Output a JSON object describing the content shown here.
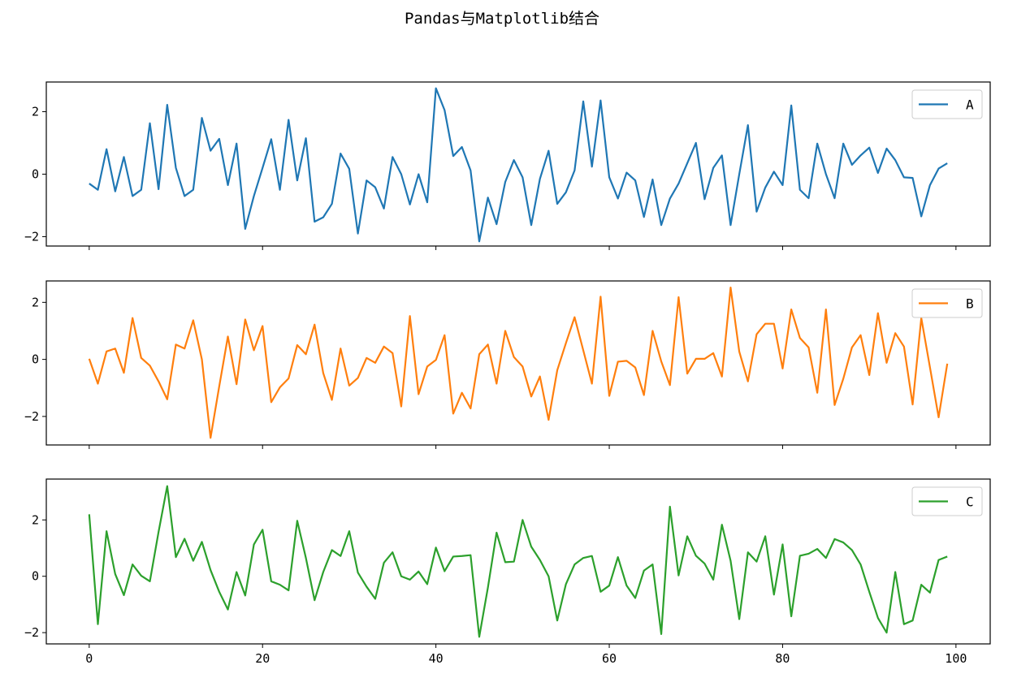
{
  "chart_data": {
    "type": "line",
    "title": "Pandas与Matplotlib结合",
    "x": [
      0,
      1,
      2,
      3,
      4,
      5,
      6,
      7,
      8,
      9,
      10,
      11,
      12,
      13,
      14,
      15,
      16,
      17,
      18,
      19,
      20,
      21,
      22,
      23,
      24,
      25,
      26,
      27,
      28,
      29,
      30,
      31,
      32,
      33,
      34,
      35,
      36,
      37,
      38,
      39,
      40,
      41,
      42,
      43,
      44,
      45,
      46,
      47,
      48,
      49,
      50,
      51,
      52,
      53,
      54,
      55,
      56,
      57,
      58,
      59,
      60,
      61,
      62,
      63,
      64,
      65,
      66,
      67,
      68,
      69,
      70,
      71,
      72,
      73,
      74,
      75,
      76,
      77,
      78,
      79,
      80,
      81,
      82,
      83,
      84,
      85,
      86,
      87,
      88,
      89,
      90,
      91,
      92,
      93,
      94,
      95,
      96,
      97,
      98,
      99
    ],
    "xlim": [
      -4.95,
      103.95
    ],
    "xticks": [
      0,
      20,
      40,
      60,
      80,
      100
    ],
    "xtick_labels": [
      "0",
      "20",
      "40",
      "60",
      "80",
      "100"
    ],
    "sharex": true,
    "grid": false,
    "legend_placement": "upper right",
    "subplots": [
      {
        "name": "A",
        "color": "#1f77b4",
        "ylim": [
          -2.3,
          2.95
        ],
        "yticks": [
          -2,
          0,
          2
        ],
        "ytick_labels": [
          "−2",
          "0",
          "2"
        ],
        "values": [
          -0.3,
          -0.5,
          0.8,
          -0.55,
          0.55,
          -0.7,
          -0.5,
          1.63,
          -0.48,
          2.22,
          0.2,
          -0.7,
          -0.5,
          1.8,
          0.75,
          1.13,
          -0.35,
          0.98,
          -1.75,
          -0.7,
          0.2,
          1.12,
          -0.5,
          1.74,
          -0.2,
          1.15,
          -1.52,
          -1.38,
          -0.95,
          0.66,
          0.17,
          -1.9,
          -0.2,
          -0.42,
          -1.1,
          0.55,
          0.0,
          -0.97,
          0.0,
          -0.9,
          2.75,
          2.05,
          0.58,
          0.87,
          0.12,
          -2.15,
          -0.75,
          -1.6,
          -0.25,
          0.45,
          -0.1,
          -1.63,
          -0.15,
          0.75,
          -0.95,
          -0.58,
          0.12,
          2.33,
          0.24,
          2.36,
          -0.1,
          -0.78,
          0.05,
          -0.2,
          -1.37,
          -0.17,
          -1.63,
          -0.78,
          -0.3,
          0.35,
          1.0,
          -0.8,
          0.2,
          0.6,
          -1.63,
          0.0,
          1.57,
          -1.2,
          -0.43,
          0.08,
          -0.35,
          2.2,
          -0.5,
          -0.77,
          0.98,
          0.0,
          -0.77,
          0.98,
          0.3,
          0.6,
          0.85,
          0.04,
          0.82,
          0.45,
          -0.1,
          -0.12,
          -1.35,
          -0.35,
          0.18,
          0.35
        ]
      },
      {
        "name": "B",
        "color": "#ff7f0e",
        "ylim": [
          -3.0,
          2.75
        ],
        "yticks": [
          -2,
          0,
          2
        ],
        "ytick_labels": [
          "−2",
          "0",
          "2"
        ],
        "values": [
          0.02,
          -0.85,
          0.28,
          0.38,
          -0.47,
          1.45,
          0.05,
          -0.22,
          -0.77,
          -1.4,
          0.52,
          0.38,
          1.37,
          0.0,
          -2.75,
          -0.95,
          0.8,
          -0.87,
          1.4,
          0.32,
          1.17,
          -1.5,
          -0.98,
          -0.67,
          0.5,
          0.18,
          1.22,
          -0.48,
          -1.42,
          0.38,
          -0.92,
          -0.65,
          0.05,
          -0.12,
          0.45,
          0.22,
          -1.65,
          1.52,
          -1.22,
          -0.25,
          -0.02,
          0.85,
          -1.9,
          -1.17,
          -1.72,
          0.18,
          0.52,
          -0.85,
          1.0,
          0.08,
          -0.25,
          -1.3,
          -0.6,
          -2.12,
          -0.38,
          0.57,
          1.48,
          0.32,
          -0.85,
          2.2,
          -1.28,
          -0.08,
          -0.05,
          -0.28,
          -1.25,
          1.0,
          -0.07,
          -0.9,
          2.18,
          -0.5,
          0.02,
          0.02,
          0.22,
          -0.6,
          2.52,
          0.27,
          -0.77,
          0.88,
          1.25,
          1.25,
          -0.32,
          1.75,
          0.75,
          0.42,
          -1.17,
          1.75,
          -1.6,
          -0.68,
          0.42,
          0.85,
          -0.55,
          1.62,
          -0.12,
          0.92,
          0.45,
          -1.58,
          1.45,
          -0.28,
          -2.03,
          -0.15
        ]
      },
      {
        "name": "C",
        "color": "#2ca02c",
        "ylim": [
          -2.4,
          3.45
        ],
        "yticks": [
          -2,
          0,
          2
        ],
        "ytick_labels": [
          "−2",
          "0",
          "2"
        ],
        "values": [
          2.2,
          -1.7,
          1.6,
          0.08,
          -0.67,
          0.42,
          0.02,
          -0.18,
          1.57,
          3.2,
          0.68,
          1.33,
          0.55,
          1.22,
          0.22,
          -0.55,
          -1.18,
          0.15,
          -0.68,
          1.13,
          1.65,
          -0.18,
          -0.3,
          -0.5,
          1.97,
          0.65,
          -0.85,
          0.15,
          0.93,
          0.72,
          1.6,
          0.13,
          -0.37,
          -0.8,
          0.48,
          0.85,
          0.0,
          -0.12,
          0.17,
          -0.28,
          1.02,
          0.18,
          0.7,
          0.72,
          0.75,
          -2.15,
          -0.4,
          1.55,
          0.5,
          0.52,
          2.0,
          1.05,
          0.58,
          0.0,
          -1.57,
          -0.28,
          0.42,
          0.65,
          0.72,
          -0.55,
          -0.33,
          0.68,
          -0.33,
          -0.77,
          0.2,
          0.42,
          -2.05,
          2.47,
          0.03,
          1.42,
          0.73,
          0.45,
          -0.12,
          1.83,
          0.55,
          -1.52,
          0.85,
          0.52,
          1.42,
          -0.65,
          1.13,
          -1.42,
          0.73,
          0.8,
          0.97,
          0.65,
          1.32,
          1.2,
          0.93,
          0.42,
          -0.55,
          -1.48,
          -2.0,
          0.15,
          -1.7,
          -1.57,
          -0.3,
          -0.58,
          0.58,
          0.7
        ]
      }
    ]
  }
}
